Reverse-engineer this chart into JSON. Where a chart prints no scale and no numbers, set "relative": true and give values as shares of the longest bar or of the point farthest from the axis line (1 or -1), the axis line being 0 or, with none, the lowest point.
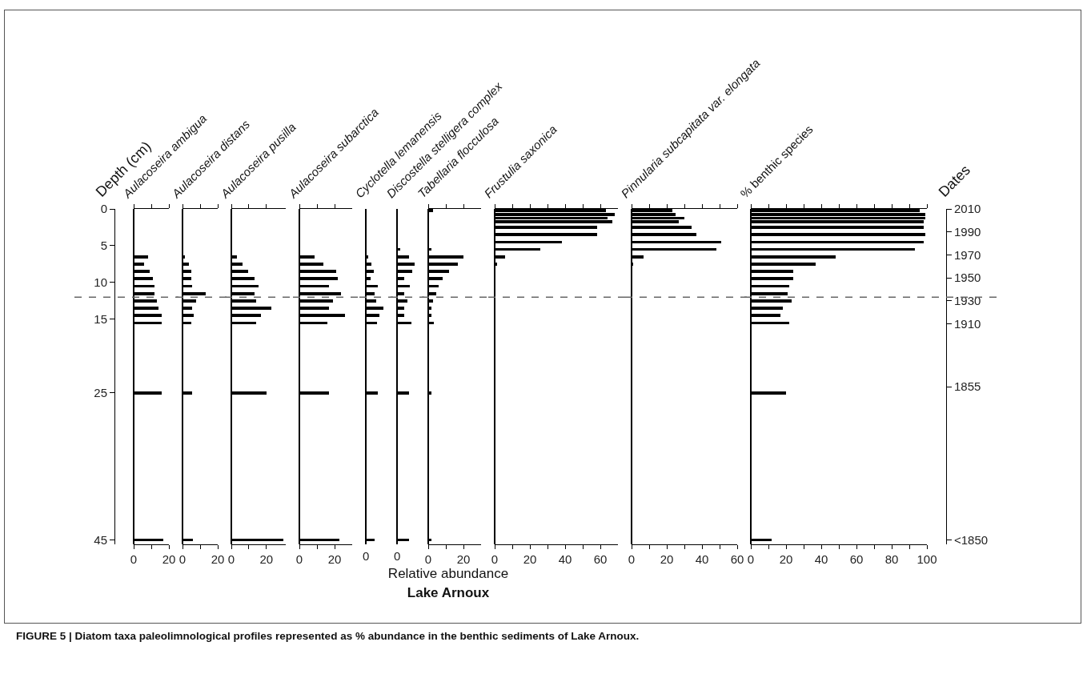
{
  "chart_data": [
    {
      "type": "bar",
      "orientation": "horizontal",
      "title": "Aulacoseira ambigua",
      "ylabel": "Depth (cm)",
      "xlim": [
        0,
        20
      ],
      "xticks": [
        0,
        {
          "value": 10,
          "label": null
        },
        20
      ],
      "ylim": [
        45.6,
        0
      ],
      "yticks": [
        0,
        5,
        10,
        15,
        25,
        45
      ],
      "ref_lines": [
        {
          "axis": "y",
          "value": 12,
          "color": "#666666",
          "line_style": "dashed"
        }
      ],
      "series": [
        {
          "color": "#000000",
          "x": [
            0.25,
            0.75,
            1.25,
            1.75,
            2.5,
            3.5,
            4.5,
            5.5,
            6.5,
            7.5,
            8.5,
            9.5,
            10.5,
            11.5,
            12.5,
            13.5,
            14.5,
            15.5,
            25,
            45
          ],
          "values": [
            0,
            0,
            0,
            0,
            0,
            0,
            0,
            0,
            8,
            6,
            9,
            11,
            12,
            12,
            13,
            14,
            16,
            16,
            16,
            17
          ]
        }
      ]
    },
    {
      "type": "bar",
      "orientation": "horizontal",
      "title": "Aulacoseira distans",
      "tick_labels": "x",
      "xlim": [
        0,
        20
      ],
      "xticks": [
        0,
        {
          "value": 10,
          "label": null
        },
        20
      ],
      "ylim": [
        45.6,
        0
      ],
      "yticks": [
        0,
        5,
        10,
        15,
        25,
        45
      ],
      "ref_lines": [
        {
          "axis": "y",
          "value": 12,
          "color": "#666666",
          "line_style": "dashed"
        }
      ],
      "series": [
        {
          "color": "#000000",
          "x": [
            0.25,
            0.75,
            1.25,
            1.75,
            2.5,
            3.5,
            4.5,
            5.5,
            6.5,
            7.5,
            8.5,
            9.5,
            10.5,
            11.5,
            12.5,
            13.5,
            14.5,
            15.5,
            25,
            45
          ],
          "values": [
            0,
            0,
            0,
            0,
            0,
            0,
            0,
            0,
            1.5,
            3.5,
            5,
            5,
            5.5,
            13,
            7.5,
            5.5,
            6.5,
            5,
            5.5,
            6
          ]
        }
      ]
    },
    {
      "type": "bar",
      "orientation": "horizontal",
      "title": "Aulacoseira pusilla",
      "tick_labels": "x",
      "xlim": [
        0,
        31
      ],
      "xticks": [
        0,
        {
          "value": 10,
          "label": null
        },
        20
      ],
      "ylim": [
        45.6,
        0
      ],
      "yticks": [
        0,
        5,
        10,
        15,
        25,
        45
      ],
      "ref_lines": [
        {
          "axis": "y",
          "value": 12,
          "color": "#666666",
          "line_style": "dashed"
        }
      ],
      "series": [
        {
          "color": "#000000",
          "x": [
            0.25,
            0.75,
            1.25,
            1.75,
            2.5,
            3.5,
            4.5,
            5.5,
            6.5,
            7.5,
            8.5,
            9.5,
            10.5,
            11.5,
            12.5,
            13.5,
            14.5,
            15.5,
            25,
            45
          ],
          "values": [
            0,
            0,
            0,
            0,
            0,
            0,
            0,
            0,
            3,
            6.5,
            9.5,
            13,
            15.5,
            13,
            14,
            23,
            17,
            14,
            20,
            29.5
          ]
        }
      ]
    },
    {
      "type": "bar",
      "orientation": "horizontal",
      "title": "Aulacoseira subarctica",
      "tick_labels": "x",
      "xlim": [
        0,
        30
      ],
      "xticks": [
        0,
        {
          "value": 10,
          "label": null
        },
        20
      ],
      "ylim": [
        45.6,
        0
      ],
      "yticks": [
        0,
        5,
        10,
        15,
        25,
        45
      ],
      "ref_lines": [
        {
          "axis": "y",
          "value": 12,
          "color": "#666666",
          "line_style": "dashed"
        }
      ],
      "series": [
        {
          "color": "#000000",
          "x": [
            0.25,
            0.75,
            1.25,
            1.75,
            2.5,
            3.5,
            4.5,
            5.5,
            6.5,
            7.5,
            8.5,
            9.5,
            10.5,
            11.5,
            12.5,
            13.5,
            14.5,
            15.5,
            25,
            45
          ],
          "values": [
            0,
            0,
            0,
            0,
            0,
            0,
            0,
            0,
            8.5,
            13.5,
            21,
            22,
            17,
            23.5,
            19,
            17,
            26,
            16,
            17,
            22.5
          ]
        }
      ]
    },
    {
      "type": "bar",
      "orientation": "horizontal",
      "title": "Cyclotella lemanensis",
      "tick_labels": "x",
      "relative": true,
      "annotations": [
        "0"
      ],
      "ylim": [
        45.6,
        0
      ],
      "yticks": [
        0,
        5,
        10,
        15,
        25,
        45
      ],
      "ref_lines": [
        {
          "axis": "y",
          "value": 12,
          "color": "#666666",
          "line_style": "dashed"
        }
      ],
      "series": [
        {
          "color": "#000000",
          "x": [
            0.25,
            0.75,
            1.25,
            1.75,
            2.5,
            3.5,
            4.5,
            5.5,
            6.5,
            7.5,
            8.5,
            9.5,
            10.5,
            11.5,
            12.5,
            13.5,
            14.5,
            15.5,
            25,
            45
          ],
          "values": [
            0,
            0,
            0,
            0,
            0,
            0,
            0,
            0,
            0.15,
            0.3,
            0.45,
            0.25,
            0.7,
            0.5,
            0.6,
            1,
            0.75,
            0.65,
            0.7,
            0.5
          ]
        }
      ]
    },
    {
      "type": "bar",
      "orientation": "horizontal",
      "title": "Discostella stelligera complex",
      "tick_labels": "x",
      "relative": true,
      "annotations": [
        "0"
      ],
      "ylim": [
        45.6,
        0
      ],
      "yticks": [
        0,
        5,
        10,
        15,
        25,
        45
      ],
      "ref_lines": [
        {
          "axis": "y",
          "value": 12,
          "color": "#666666",
          "line_style": "dashed"
        }
      ],
      "series": [
        {
          "color": "#000000",
          "x": [
            0.25,
            0.75,
            1.25,
            1.75,
            2.5,
            3.5,
            4.5,
            5.5,
            6.5,
            7.5,
            8.5,
            9.5,
            10.5,
            11.5,
            12.5,
            13.5,
            14.5,
            15.5,
            25,
            45
          ],
          "values": [
            0,
            0,
            0,
            0,
            0,
            0,
            0,
            0.2,
            0.67,
            1,
            0.87,
            0.4,
            0.73,
            0.4,
            0.6,
            0.4,
            0.4,
            0.8,
            0.67,
            0.67
          ]
        }
      ]
    },
    {
      "type": "bar",
      "orientation": "horizontal",
      "title": "Tabellaria flocculosa",
      "tick_labels": "x",
      "xlim": [
        0,
        30
      ],
      "xticks": [
        0,
        {
          "value": 10,
          "label": null
        },
        20
      ],
      "ylim": [
        45.6,
        0
      ],
      "yticks": [
        0,
        5,
        10,
        15,
        25,
        45
      ],
      "ref_lines": [
        {
          "axis": "y",
          "value": 12,
          "color": "#666666",
          "line_style": "dashed"
        }
      ],
      "series": [
        {
          "color": "#000000",
          "x": [
            0.25,
            0.75,
            1.25,
            1.75,
            2.5,
            3.5,
            4.5,
            5.5,
            6.5,
            7.5,
            8.5,
            9.5,
            10.5,
            11.5,
            12.5,
            13.5,
            14.5,
            15.5,
            25,
            45
          ],
          "values": [
            2.5,
            0,
            0,
            0,
            0,
            0,
            0,
            2,
            20,
            17,
            12,
            8,
            6,
            4.5,
            2.5,
            2,
            2,
            3,
            2,
            2
          ]
        }
      ]
    },
    {
      "type": "bar",
      "orientation": "horizontal",
      "title": "Frustulia saxonica",
      "tick_labels": "x",
      "xlim": [
        0,
        70
      ],
      "xticks": [
        0,
        {
          "value": 10,
          "label": null
        },
        20,
        {
          "value": 30,
          "label": null
        },
        40,
        {
          "value": 50,
          "label": null
        },
        60
      ],
      "ylim": [
        45.6,
        0
      ],
      "yticks": [
        0,
        5,
        10,
        15,
        25,
        45
      ],
      "ref_lines": [
        {
          "axis": "y",
          "value": 12,
          "color": "#666666",
          "line_style": "dashed"
        }
      ],
      "annotations": [
        "Relative abundance",
        "Lake Arnoux",
        "FIGURE 5 | Diatom taxa paleolimnological profiles represented as % abundance in the benthic sediments of Lake Arnoux."
      ],
      "series": [
        {
          "color": "#000000",
          "x": [
            0.25,
            0.75,
            1.25,
            1.75,
            2.5,
            3.5,
            4.5,
            5.5,
            6.5,
            7.5,
            8.5,
            9.5,
            10.5,
            11.5,
            12.5,
            13.5,
            14.5,
            15.5,
            25,
            45
          ],
          "values": [
            63,
            68,
            64,
            67,
            58,
            58,
            38,
            26,
            6,
            1.5,
            0,
            0,
            0,
            0,
            0,
            0,
            0,
            0,
            0,
            0
          ]
        }
      ]
    },
    {
      "type": "bar",
      "orientation": "horizontal",
      "title": "Pinnularia subcapitata var. elongata",
      "tick_labels": "x",
      "xlim": [
        0,
        60
      ],
      "xticks": [
        0,
        {
          "value": 10,
          "label": null
        },
        20,
        {
          "value": 30,
          "label": null
        },
        40,
        {
          "value": 50,
          "label": null
        },
        60
      ],
      "ylim": [
        45.6,
        0
      ],
      "yticks": [
        0,
        5,
        10,
        15,
        25,
        45
      ],
      "ref_lines": [
        {
          "axis": "y",
          "value": 12,
          "color": "#666666",
          "line_style": "dashed"
        }
      ],
      "series": [
        {
          "color": "#000000",
          "x": [
            0.25,
            0.75,
            1.25,
            1.75,
            2.5,
            3.5,
            4.5,
            5.5,
            6.5,
            7.5,
            8.5,
            9.5,
            10.5,
            11.5,
            12.5,
            13.5,
            14.5,
            15.5,
            25,
            45
          ],
          "values": [
            23,
            25,
            30,
            27,
            34,
            37,
            51,
            48,
            7,
            1,
            0,
            0,
            0,
            0,
            0,
            0,
            0,
            0,
            0,
            0
          ]
        }
      ]
    },
    {
      "type": "bar",
      "orientation": "horizontal",
      "title": "% benthic species",
      "y2label": "Dates",
      "xlim": [
        0,
        100
      ],
      "xticks": [
        0,
        {
          "value": 10,
          "label": null
        },
        20,
        {
          "value": 30,
          "label": null
        },
        40,
        {
          "value": 50,
          "label": null
        },
        60,
        {
          "value": 70,
          "label": null
        },
        80,
        {
          "value": 90,
          "label": null
        },
        100
      ],
      "ylim": [
        45.6,
        0
      ],
      "y2lim": [
        1717.7,
        2010
      ],
      "y2ticks": [
        2010,
        1990,
        1970,
        1950,
        1930,
        1910,
        1855,
        {
          "value": 1721.5,
          "label": "<1850"
        }
      ],
      "ref_lines": [
        {
          "axis": "y",
          "value": 12,
          "color": "#666666",
          "line_style": "dashed"
        }
      ],
      "series": [
        {
          "color": "#000000",
          "x": [
            0.25,
            0.75,
            1.25,
            1.75,
            2.5,
            3.5,
            4.5,
            5.5,
            6.5,
            7.5,
            8.5,
            9.5,
            10.5,
            11.5,
            12.5,
            13.5,
            14.5,
            15.5,
            25,
            45
          ],
          "values": [
            96,
            99,
            99,
            98,
            98,
            99,
            98,
            93,
            48,
            37,
            24,
            24,
            22,
            21,
            23,
            18,
            17,
            22,
            20,
            12
          ]
        }
      ]
    }
  ]
}
